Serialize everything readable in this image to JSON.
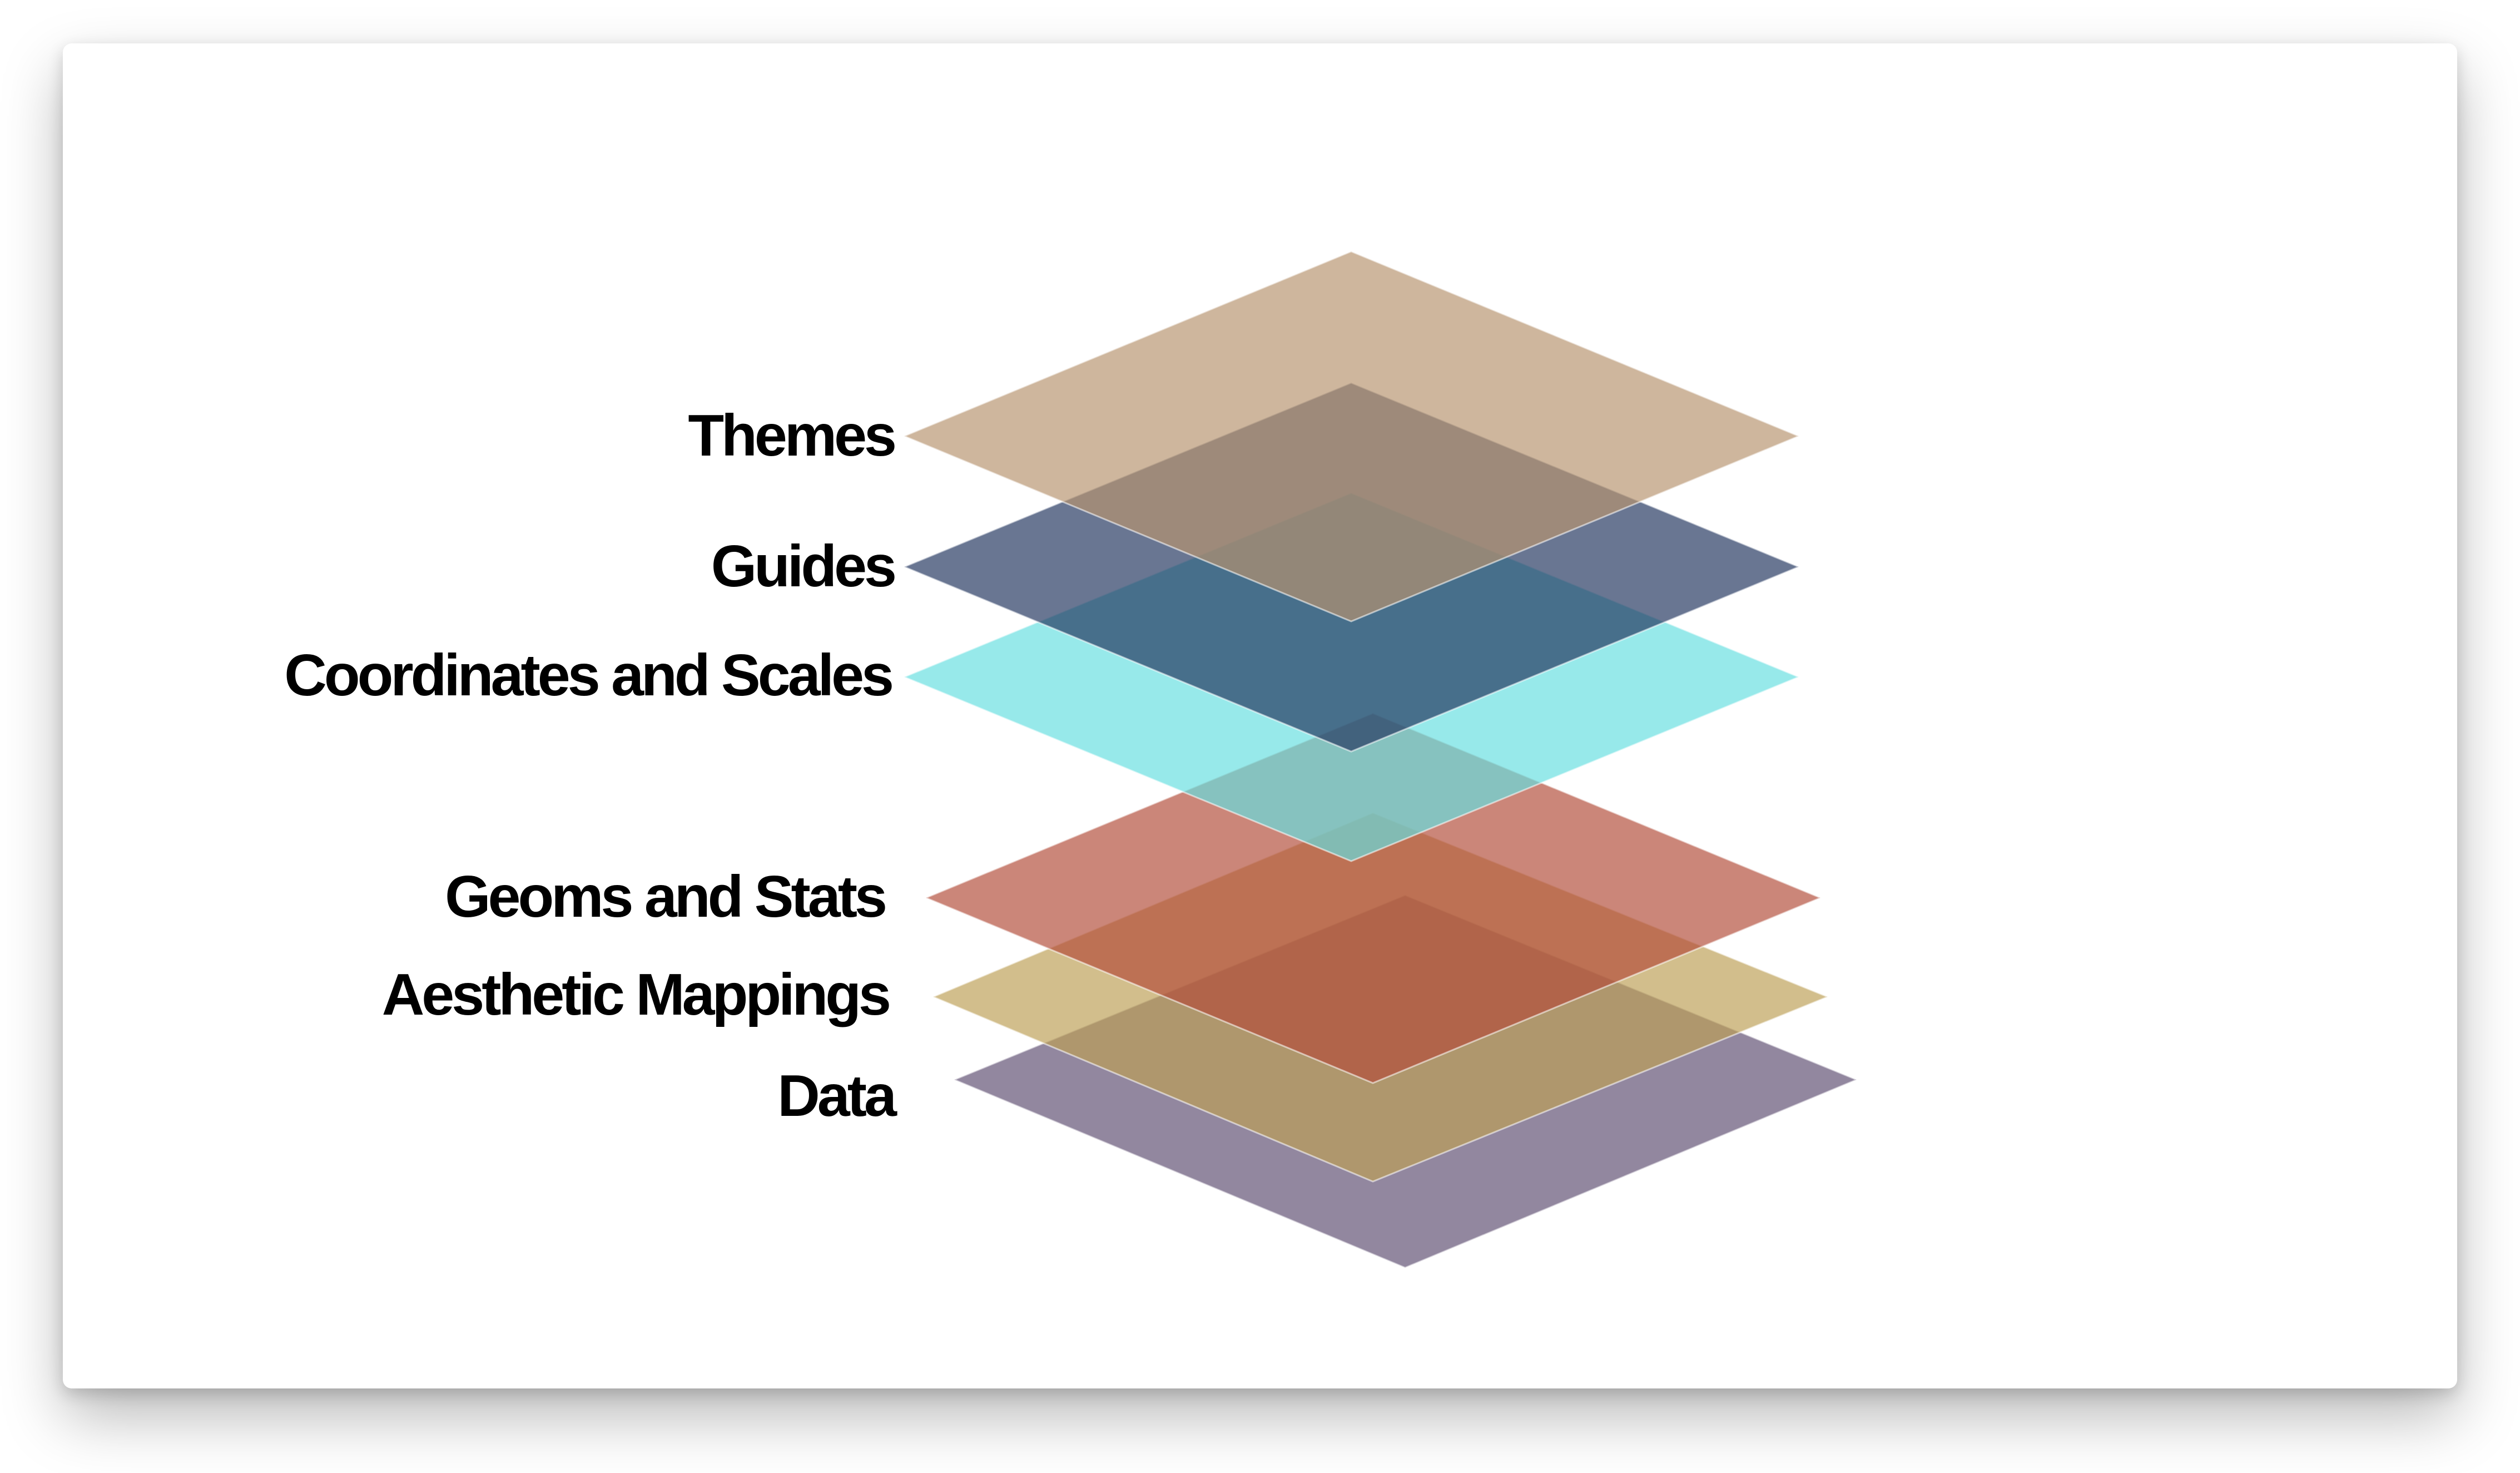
{
  "layers": [
    {
      "key": "data",
      "label": "Data",
      "color": "#5e4e72"
    },
    {
      "key": "aesthetics",
      "label": "Aesthetic Mappings",
      "color": "#bd9f55"
    },
    {
      "key": "geoms",
      "label": "Geoms and Stats",
      "color": "#b24d3a"
    },
    {
      "key": "coords",
      "label": "Coordinates and Scales",
      "color": "#66dfe0"
    },
    {
      "key": "guides",
      "label": "Guides",
      "color": "#22355e"
    },
    {
      "key": "themes",
      "label": "Themes",
      "color": "#b7946f"
    }
  ]
}
